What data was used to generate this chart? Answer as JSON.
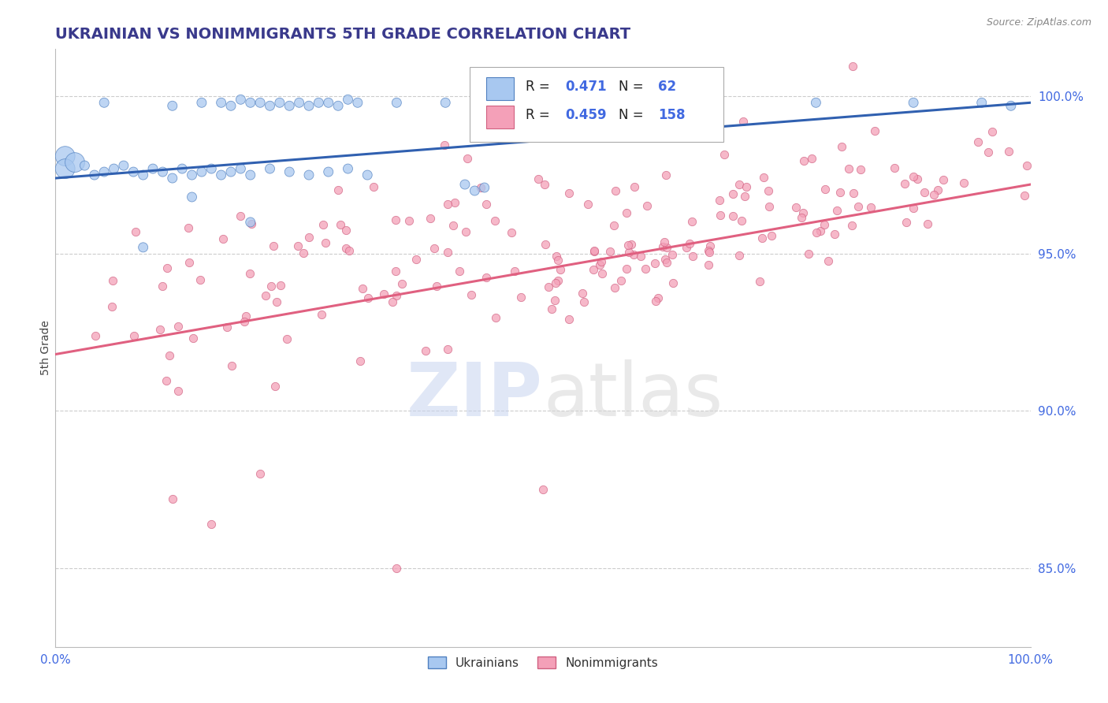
{
  "title": "UKRAINIAN VS NONIMMIGRANTS 5TH GRADE CORRELATION CHART",
  "source_text": "Source: ZipAtlas.com",
  "ylabel": "5th Grade",
  "xmin": 0.0,
  "xmax": 1.0,
  "ymin": 0.825,
  "ymax": 1.015,
  "right_yticks": [
    0.85,
    0.9,
    0.95,
    1.0
  ],
  "right_yticklabels": [
    "85.0%",
    "90.0%",
    "95.0%",
    "100.0%"
  ],
  "blue_color": "#a8c8f0",
  "pink_color": "#f4a0b8",
  "blue_edge_color": "#5080c0",
  "pink_edge_color": "#d06080",
  "blue_line_color": "#3060b0",
  "pink_line_color": "#e06080",
  "R_blue": 0.471,
  "N_blue": 62,
  "R_pink": 0.459,
  "N_pink": 158,
  "title_color": "#3a3a8c",
  "tick_color": "#4169e1",
  "grid_color": "#cccccc",
  "blue_line_start_y": 0.974,
  "blue_line_end_y": 0.998,
  "pink_line_start_y": 0.918,
  "pink_line_end_y": 0.972
}
